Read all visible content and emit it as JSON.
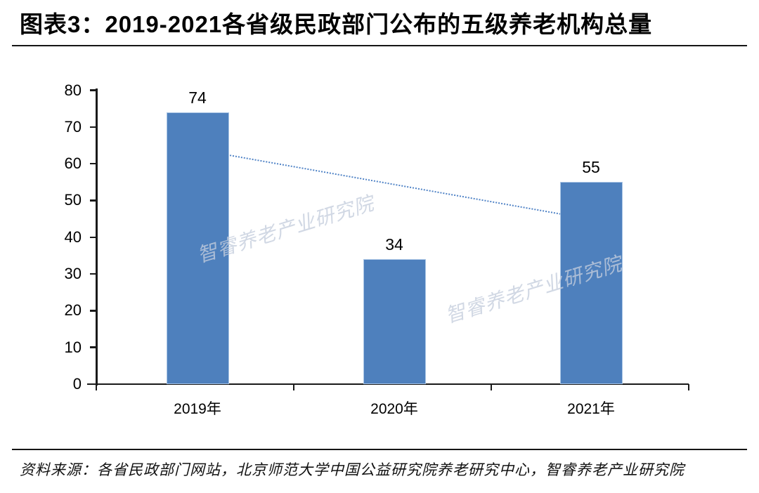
{
  "header": {
    "title": "图表3：2019-2021各省级民政部门公布的五级养老机构总量"
  },
  "watermark": {
    "text": "智睿养老产业研究院"
  },
  "footer": {
    "source": "资料来源：各省民政部门网站，北京师范大学中国公益研究院养老研究中心，智睿养老产业研究院"
  },
  "chart_data": {
    "type": "bar",
    "title": "图表3：2019-2021各省级民政部门公布的五级养老机构总量",
    "categories": [
      "2019年",
      "2020年",
      "2021年"
    ],
    "values": [
      74,
      34,
      55
    ],
    "xlabel": "",
    "ylabel": "",
    "ylim": [
      0,
      80
    ],
    "yticks": [
      0,
      10,
      20,
      30,
      40,
      50,
      60,
      70,
      80
    ],
    "grid": false,
    "legend": false,
    "bar_color": "#4E80BD",
    "bar_border_color": "#A9C5E5",
    "axis_color": "#1A1A1A",
    "trendline": {
      "style": "dotted",
      "color": "#5083C6",
      "start_value": 64,
      "end_value": 45,
      "from_category": "2019年",
      "to_category": "2021年"
    }
  }
}
